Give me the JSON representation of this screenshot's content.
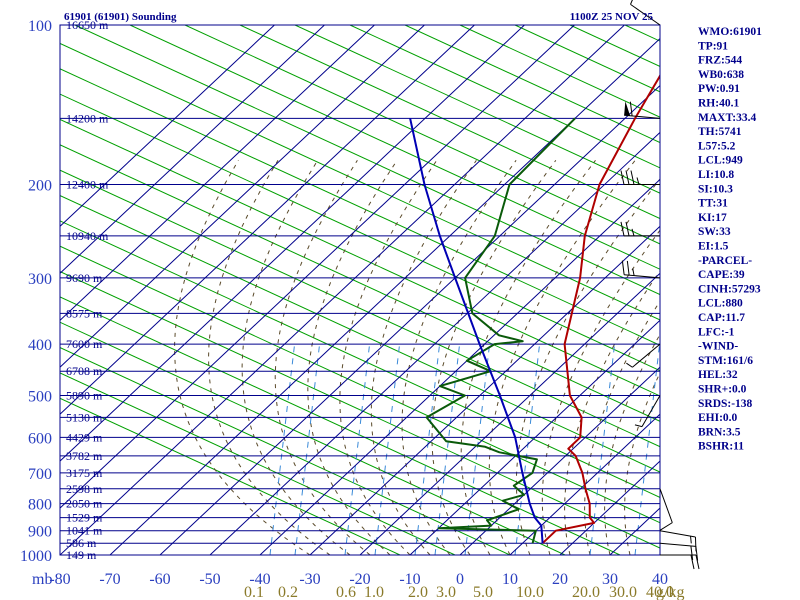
{
  "header": {
    "station": "61901 (61901) Sounding",
    "time": "1100Z 25 NOV 25"
  },
  "indices": [
    "WMO:61901",
    "TP:91",
    "FRZ:544",
    "WB0:638",
    "PW:0.91",
    "RH:40.1",
    "MAXT:33.4",
    "TH:5741",
    "L57:5.2",
    "LCL:949",
    "LI:10.8",
    "SI:10.3",
    "TT:31",
    "KI:17",
    "SW:33",
    "EI:1.5",
    "-PARCEL-",
    "CAPE:39",
    "CINH:57293",
    "LCL:880",
    "CAP:11.7",
    "LFC:-1",
    "-WIND-",
    "STM:161/6",
    "HEL:32",
    "SHR+:0.0",
    "SRDS:-138",
    "EHI:0.0",
    "BRN:3.5",
    "BSHR:11"
  ],
  "colors": {
    "frame": "#00008b",
    "text": "#00008b",
    "temperature": "#b00000",
    "dewpoint": "#0a5a0a",
    "parcel": "#0000b4",
    "dry_adiabat": "#00a000",
    "moist_adiabat": "#5a4a2a",
    "mixing_ratio": "#3a8ad8",
    "mixing_label": "#8a7a2a",
    "axis_tick": "#2a3fbf"
  },
  "chart_data": {
    "type": "line",
    "title": "61901 (61901) Sounding",
    "xlabel": "",
    "ylabel": "mb",
    "x_unit_label": "g/kg",
    "xlim": [
      -80,
      40
    ],
    "pressure_range": [
      100,
      1000
    ],
    "pressure_ticks": [
      100,
      200,
      300,
      400,
      500,
      600,
      700,
      800,
      900,
      1000
    ],
    "height_labels": [
      {
        "p": 100,
        "label": "16650 m"
      },
      {
        "p": 150,
        "label": "14200 m"
      },
      {
        "p": 200,
        "label": "12400 m"
      },
      {
        "p": 250,
        "label": "10940 m"
      },
      {
        "p": 300,
        "label": "9690 m"
      },
      {
        "p": 350,
        "label": "8575 m"
      },
      {
        "p": 400,
        "label": "7600 m"
      },
      {
        "p": 450,
        "label": "6708 m"
      },
      {
        "p": 500,
        "label": "5890 m"
      },
      {
        "p": 550,
        "label": "5130 m"
      },
      {
        "p": 600,
        "label": "4429 m"
      },
      {
        "p": 650,
        "label": "3782 m"
      },
      {
        "p": 700,
        "label": "3175 m"
      },
      {
        "p": 750,
        "label": "2598 m"
      },
      {
        "p": 800,
        "label": "2050 m"
      },
      {
        "p": 850,
        "label": "1529 m"
      },
      {
        "p": 900,
        "label": "1041 m"
      },
      {
        "p": 950,
        "label": "586 m"
      },
      {
        "p": 1000,
        "label": "149 m"
      }
    ],
    "temperature_ticks": [
      -80,
      -70,
      -60,
      -50,
      -40,
      -30,
      -20,
      -10,
      0,
      10,
      20,
      30,
      40
    ],
    "mixing_ratio_ticks": [
      "0.1",
      "0.2",
      "0.6",
      "1.0",
      "2.0",
      "3.0",
      "5.0",
      "10.0",
      "20.0",
      "30.0",
      "40.0"
    ],
    "series": [
      {
        "name": "temperature",
        "points": [
          {
            "p": 100,
            "x": -68
          },
          {
            "p": 125,
            "x": -62
          },
          {
            "p": 150,
            "x": -58
          },
          {
            "p": 200,
            "x": -51
          },
          {
            "p": 250,
            "x": -43
          },
          {
            "p": 300,
            "x": -35
          },
          {
            "p": 400,
            "x": -24
          },
          {
            "p": 500,
            "x": -12
          },
          {
            "p": 550,
            "x": -5
          },
          {
            "p": 600,
            "x": -1
          },
          {
            "p": 630,
            "x": -1
          },
          {
            "p": 650,
            "x": 2
          },
          {
            "p": 700,
            "x": 7
          },
          {
            "p": 750,
            "x": 11
          },
          {
            "p": 800,
            "x": 15
          },
          {
            "p": 850,
            "x": 18
          },
          {
            "p": 870,
            "x": 20
          },
          {
            "p": 900,
            "x": 14
          },
          {
            "p": 950,
            "x": 14
          }
        ]
      },
      {
        "name": "dewpoint",
        "points": [
          {
            "p": 150,
            "x": -70
          },
          {
            "p": 200,
            "x": -69
          },
          {
            "p": 250,
            "x": -61
          },
          {
            "p": 300,
            "x": -58
          },
          {
            "p": 350,
            "x": -49
          },
          {
            "p": 385,
            "x": -39
          },
          {
            "p": 395,
            "x": -33
          },
          {
            "p": 400,
            "x": -38
          },
          {
            "p": 430,
            "x": -40
          },
          {
            "p": 450,
            "x": -33
          },
          {
            "p": 480,
            "x": -40
          },
          {
            "p": 500,
            "x": -33
          },
          {
            "p": 550,
            "x": -36
          },
          {
            "p": 610,
            "x": -27
          },
          {
            "p": 625,
            "x": -18
          },
          {
            "p": 640,
            "x": -14
          },
          {
            "p": 660,
            "x": -5
          },
          {
            "p": 700,
            "x": -3
          },
          {
            "p": 740,
            "x": -4
          },
          {
            "p": 770,
            "x": 0
          },
          {
            "p": 790,
            "x": -3
          },
          {
            "p": 820,
            "x": 2
          },
          {
            "p": 860,
            "x": -2
          },
          {
            "p": 880,
            "x": 0
          },
          {
            "p": 890,
            "x": -10
          },
          {
            "p": 900,
            "x": 10
          },
          {
            "p": 950,
            "x": 12
          }
        ]
      },
      {
        "name": "parcel",
        "points": [
          {
            "p": 950,
            "x": 14
          },
          {
            "p": 880,
            "x": 10
          },
          {
            "p": 850,
            "x": 7
          },
          {
            "p": 800,
            "x": 3
          },
          {
            "p": 700,
            "x": -5
          },
          {
            "p": 600,
            "x": -14
          },
          {
            "p": 500,
            "x": -26
          },
          {
            "p": 400,
            "x": -41
          },
          {
            "p": 300,
            "x": -60
          },
          {
            "p": 250,
            "x": -72
          },
          {
            "p": 200,
            "x": -86
          },
          {
            "p": 150,
            "x": -103
          }
        ]
      }
    ],
    "wind_barbs": [
      {
        "p": 100,
        "dir": 305,
        "kt": 10
      },
      {
        "p": 150,
        "dir": 275,
        "kt": 60
      },
      {
        "p": 200,
        "dir": 270,
        "kt": 35
      },
      {
        "p": 250,
        "dir": 270,
        "kt": 25
      },
      {
        "p": 300,
        "dir": 275,
        "kt": 25
      },
      {
        "p": 400,
        "dir": 230,
        "kt": 5
      },
      {
        "p": 500,
        "dir": 210,
        "kt": 5
      },
      {
        "p": 750,
        "dir": 160,
        "kt": 10
      },
      {
        "p": 900,
        "dir": 100,
        "kt": 15
      },
      {
        "p": 950,
        "dir": 95,
        "kt": 20
      },
      {
        "p": 1000,
        "dir": 90,
        "kt": 20
      }
    ]
  }
}
